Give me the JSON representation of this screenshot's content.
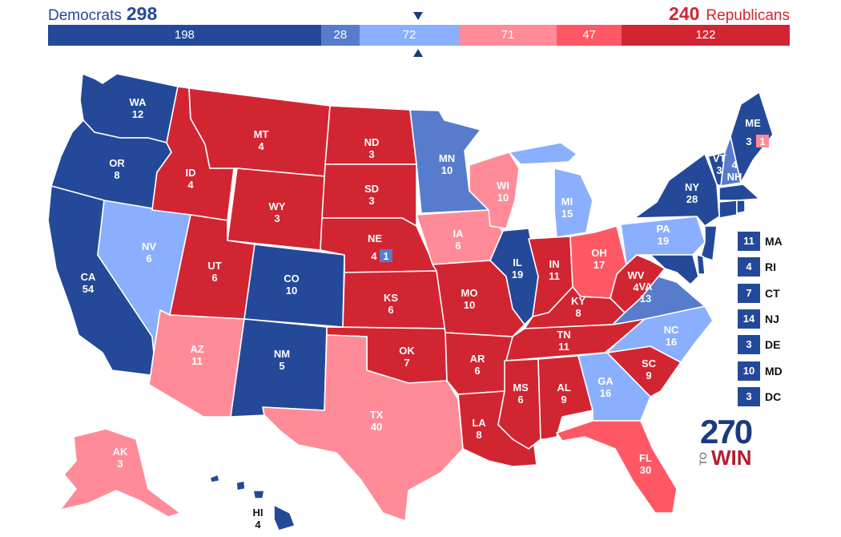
{
  "header": {
    "dem_label": "Democrats",
    "dem_total": "298",
    "rep_label": "Republicans",
    "rep_total": "240"
  },
  "bar": [
    {
      "value": 198,
      "color": "#244999"
    },
    {
      "value": 28,
      "color": "#577ccc"
    },
    {
      "value": 72,
      "color": "#8aafff"
    },
    {
      "value": 71,
      "color": "#ff8b98"
    },
    {
      "value": 47,
      "color": "#ff5865"
    },
    {
      "value": 122,
      "color": "#d22532"
    }
  ],
  "colors": {
    "safe_dem": "#244999",
    "likely_dem": "#577ccc",
    "lean_dem": "#8aafff",
    "lean_rep": "#ff8b98",
    "likely_rep": "#ff5865",
    "safe_rep": "#d22532"
  },
  "states": {
    "WA": {
      "abbr": "WA",
      "ev": "12"
    },
    "OR": {
      "abbr": "OR",
      "ev": "8"
    },
    "CA": {
      "abbr": "CA",
      "ev": "54"
    },
    "NV": {
      "abbr": "NV",
      "ev": "6"
    },
    "ID": {
      "abbr": "ID",
      "ev": "4"
    },
    "MT": {
      "abbr": "MT",
      "ev": "4"
    },
    "WY": {
      "abbr": "WY",
      "ev": "3"
    },
    "UT": {
      "abbr": "UT",
      "ev": "6"
    },
    "CO": {
      "abbr": "CO",
      "ev": "10"
    },
    "AZ": {
      "abbr": "AZ",
      "ev": "11"
    },
    "NM": {
      "abbr": "NM",
      "ev": "5"
    },
    "ND": {
      "abbr": "ND",
      "ev": "3"
    },
    "SD": {
      "abbr": "SD",
      "ev": "3"
    },
    "NE": {
      "abbr": "NE",
      "ev": "4"
    },
    "NE_CD2": {
      "ev": "1"
    },
    "KS": {
      "abbr": "KS",
      "ev": "6"
    },
    "OK": {
      "abbr": "OK",
      "ev": "7"
    },
    "TX": {
      "abbr": "TX",
      "ev": "40"
    },
    "MN": {
      "abbr": "MN",
      "ev": "10"
    },
    "IA": {
      "abbr": "IA",
      "ev": "6"
    },
    "MO": {
      "abbr": "MO",
      "ev": "10"
    },
    "AR": {
      "abbr": "AR",
      "ev": "6"
    },
    "LA": {
      "abbr": "LA",
      "ev": "8"
    },
    "WI": {
      "abbr": "WI",
      "ev": "10"
    },
    "IL": {
      "abbr": "IL",
      "ev": "19"
    },
    "MI": {
      "abbr": "MI",
      "ev": "15"
    },
    "IN": {
      "abbr": "IN",
      "ev": "11"
    },
    "OH": {
      "abbr": "OH",
      "ev": "17"
    },
    "KY": {
      "abbr": "KY",
      "ev": "8"
    },
    "TN": {
      "abbr": "TN",
      "ev": "11"
    },
    "MS": {
      "abbr": "MS",
      "ev": "6"
    },
    "AL": {
      "abbr": "AL",
      "ev": "9"
    },
    "GA": {
      "abbr": "GA",
      "ev": "16"
    },
    "FL": {
      "abbr": "FL",
      "ev": "30"
    },
    "SC": {
      "abbr": "SC",
      "ev": "9"
    },
    "NC": {
      "abbr": "NC",
      "ev": "16"
    },
    "VA": {
      "abbr": "VA",
      "ev": "13"
    },
    "WV": {
      "abbr": "WV",
      "ev": "4"
    },
    "PA": {
      "abbr": "PA",
      "ev": "19"
    },
    "NY": {
      "abbr": "NY",
      "ev": "28"
    },
    "VT": {
      "abbr": "VT",
      "ev": "3"
    },
    "NH": {
      "abbr": "NH",
      "ev": "4"
    },
    "ME": {
      "abbr": "ME",
      "ev": "3"
    },
    "ME_CD2": {
      "ev": "1"
    },
    "AK": {
      "abbr": "AK",
      "ev": "3"
    },
    "HI": {
      "abbr": "HI",
      "ev": "4"
    }
  },
  "small_states": [
    {
      "ev": "11",
      "label": "MA"
    },
    {
      "ev": "4",
      "label": "RI"
    },
    {
      "ev": "7",
      "label": "CT"
    },
    {
      "ev": "14",
      "label": "NJ"
    },
    {
      "ev": "3",
      "label": "DE"
    },
    {
      "ev": "10",
      "label": "MD"
    },
    {
      "ev": "3",
      "label": "DC"
    }
  ],
  "logo": {
    "number": "270",
    "to": "TO",
    "win": "WIN"
  }
}
